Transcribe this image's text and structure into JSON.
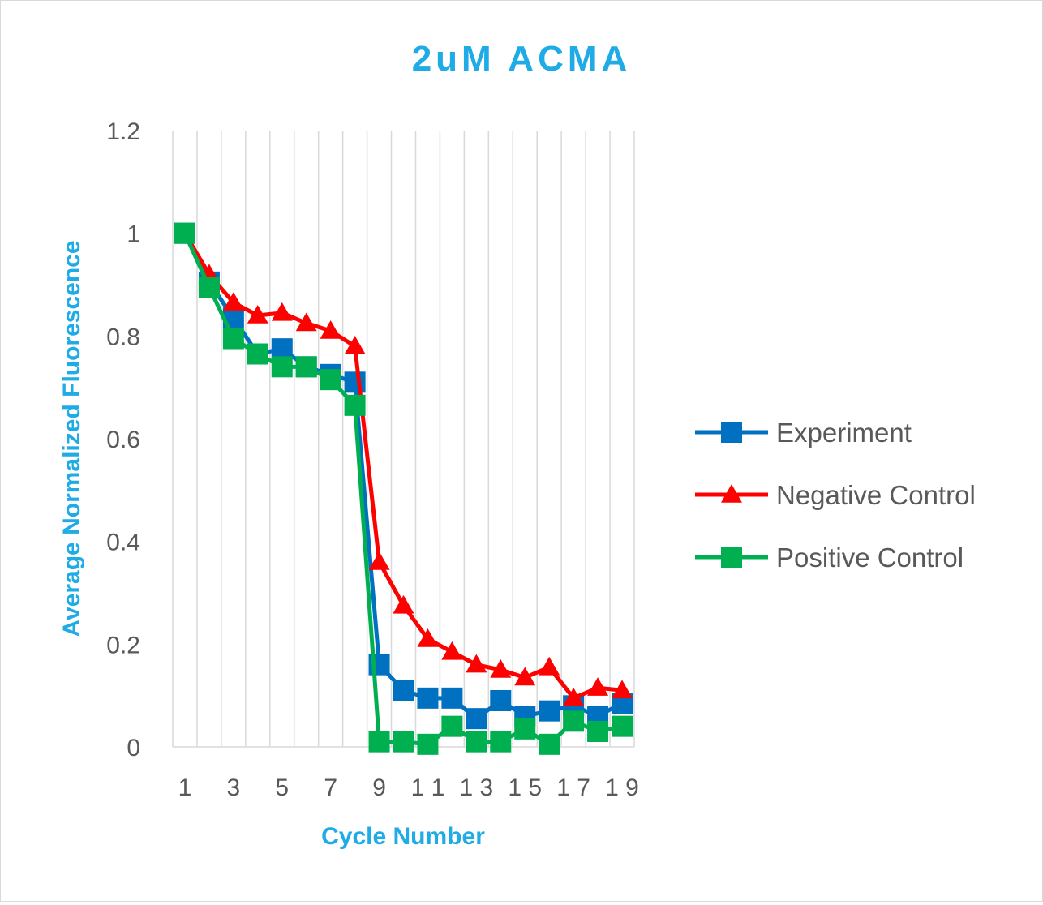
{
  "chart_data": {
    "type": "line",
    "title": "2uM ACMA",
    "xlabel": "Cycle Number",
    "ylabel": "Average Normalized Fluorescence",
    "x": [
      1,
      2,
      3,
      4,
      5,
      6,
      7,
      8,
      9,
      10,
      11,
      12,
      13,
      14,
      15,
      16,
      17,
      18,
      19
    ],
    "x_tick_labels": [
      "1",
      "3",
      "5",
      "7",
      "9",
      "1 1",
      "1 3",
      "1 5",
      "1 7",
      "1 9"
    ],
    "x_tick_values": [
      1,
      3,
      5,
      7,
      9,
      11,
      13,
      15,
      17,
      19
    ],
    "y_ticks": [
      "0",
      "0.2",
      "0.4",
      "0.6",
      "0.8",
      "1",
      "1.2"
    ],
    "y_tick_values": [
      0,
      0.2,
      0.4,
      0.6,
      0.8,
      1,
      1.2
    ],
    "ylim": [
      0,
      1.2
    ],
    "grid": "vertical",
    "legend_position": "right",
    "series": [
      {
        "name": "Experiment",
        "color": "#0070c0",
        "marker": "square",
        "values": [
          1.0,
          0.905,
          0.835,
          0.765,
          0.775,
          0.74,
          0.725,
          0.71,
          0.16,
          0.11,
          0.095,
          0.095,
          0.055,
          0.09,
          0.06,
          0.07,
          0.08,
          0.06,
          0.085
        ]
      },
      {
        "name": "Negative Control",
        "color": "#ff0000",
        "marker": "triangle",
        "values": [
          1.0,
          0.92,
          0.865,
          0.84,
          0.845,
          0.825,
          0.81,
          0.78,
          0.36,
          0.275,
          0.21,
          0.185,
          0.16,
          0.15,
          0.135,
          0.155,
          0.095,
          0.115,
          0.11
        ]
      },
      {
        "name": "Positive Control",
        "color": "#00b050",
        "marker": "square",
        "values": [
          1.0,
          0.895,
          0.795,
          0.765,
          0.74,
          0.74,
          0.715,
          0.665,
          0.01,
          0.01,
          0.005,
          0.04,
          0.01,
          0.01,
          0.035,
          0.005,
          0.05,
          0.03,
          0.04
        ]
      }
    ]
  }
}
